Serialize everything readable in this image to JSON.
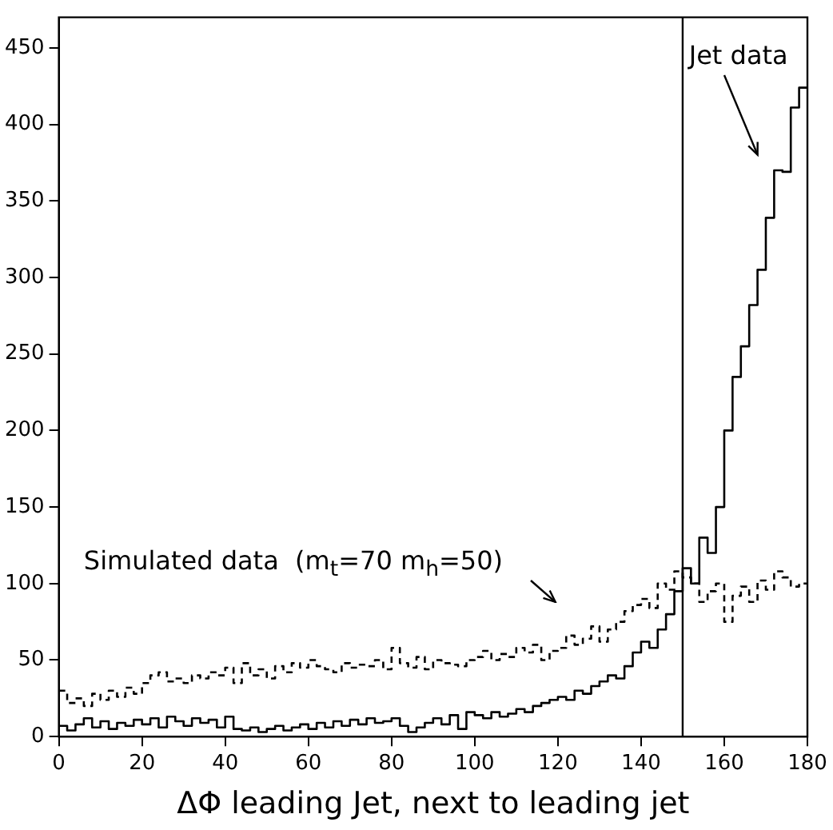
{
  "chart_data": {
    "type": "histogram",
    "xlabel": "ΔΦ leading Jet, next to leading jet",
    "bins": [
      0,
      2,
      4,
      6,
      8,
      10,
      12,
      14,
      16,
      18,
      20,
      22,
      24,
      26,
      28,
      30,
      32,
      34,
      36,
      38,
      40,
      42,
      44,
      46,
      48,
      50,
      52,
      54,
      56,
      58,
      60,
      62,
      64,
      66,
      68,
      70,
      72,
      74,
      76,
      78,
      80,
      82,
      84,
      86,
      88,
      90,
      92,
      94,
      96,
      98,
      100,
      102,
      104,
      106,
      108,
      110,
      112,
      114,
      116,
      118,
      120,
      122,
      124,
      126,
      128,
      130,
      132,
      134,
      136,
      138,
      140,
      142,
      144,
      146,
      148,
      150,
      152,
      154,
      156,
      158,
      160,
      162,
      164,
      166,
      168,
      170,
      172,
      174,
      176,
      178,
      180
    ],
    "series": [
      {
        "name": "Jet data",
        "color": "#000000",
        "line_style": "solid",
        "values": [
          7,
          4,
          8,
          12,
          6,
          10,
          5,
          9,
          7,
          11,
          8,
          12,
          6,
          13,
          10,
          7,
          12,
          9,
          11,
          6,
          13,
          5,
          4,
          6,
          3,
          5,
          7,
          4,
          6,
          8,
          5,
          9,
          6,
          10,
          7,
          11,
          8,
          12,
          9,
          10,
          12,
          7,
          3,
          6,
          9,
          12,
          8,
          14,
          5,
          16,
          14,
          12,
          16,
          13,
          15,
          18,
          16,
          20,
          22,
          24,
          26,
          24,
          30,
          28,
          33,
          36,
          40,
          38,
          46,
          55,
          62,
          58,
          70,
          80,
          95,
          110,
          100,
          130,
          120,
          150,
          200,
          235,
          255,
          282,
          305,
          339,
          370,
          369,
          411,
          424
        ]
      },
      {
        "name": "Simulated data  (m$_{t}$=70 m$_{h}$=50)",
        "color": "#000000",
        "line_style": "dashed",
        "values": [
          30,
          22,
          25,
          20,
          28,
          24,
          30,
          26,
          32,
          28,
          35,
          40,
          42,
          36,
          38,
          35,
          40,
          38,
          42,
          40,
          45,
          35,
          48,
          40,
          44,
          38,
          46,
          42,
          48,
          45,
          50,
          46,
          44,
          42,
          48,
          45,
          47,
          46,
          50,
          44,
          58,
          48,
          45,
          52,
          44,
          50,
          48,
          47,
          46,
          50,
          52,
          56,
          50,
          54,
          52,
          58,
          55,
          60,
          50,
          56,
          58,
          66,
          60,
          64,
          72,
          62,
          70,
          75,
          82,
          86,
          90,
          84,
          100,
          96,
          108,
          104,
          100,
          88,
          95,
          100,
          75,
          92,
          98,
          88,
          102,
          96,
          108,
          104,
          98,
          100
        ]
      }
    ],
    "xlim": [
      0,
      180
    ],
    "xticks": [
      0,
      20,
      40,
      60,
      80,
      100,
      120,
      140,
      160,
      180
    ],
    "ylim": [
      0,
      470
    ],
    "yticks": [
      0,
      50,
      100,
      150,
      200,
      250,
      300,
      350,
      400,
      450
    ],
    "ref_lines": [
      {
        "axis": "x",
        "value": 150,
        "color": "#000000"
      }
    ],
    "grid": false,
    "legend": false
  }
}
